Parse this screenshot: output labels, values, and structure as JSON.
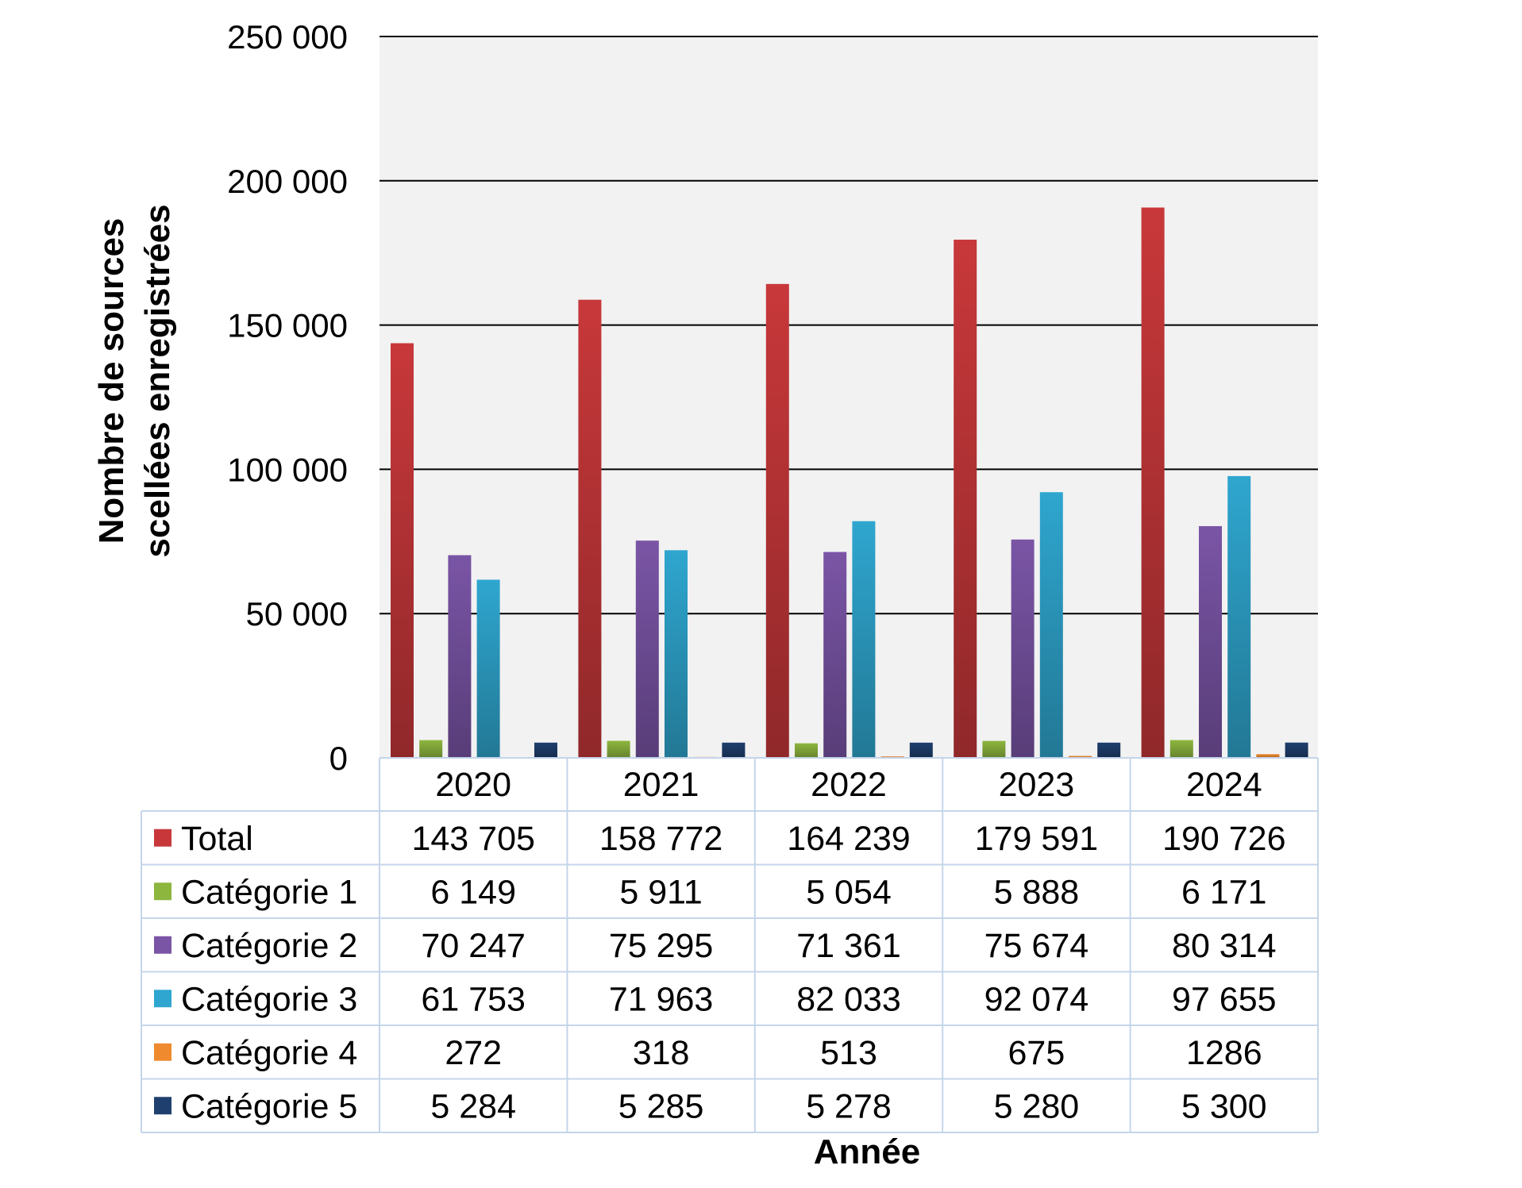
{
  "chart_data": {
    "type": "bar",
    "xlabel": "Année",
    "ylabel": "Nombre de sources scellées enregistrées",
    "ylabel_lines": [
      "Nombre de sources",
      "scellées enregistrées"
    ],
    "ylim": [
      0,
      250000
    ],
    "yticks": [
      0,
      50000,
      100000,
      150000,
      200000,
      250000
    ],
    "ytick_labels": [
      "0",
      "50 000",
      "100 000",
      "150 000",
      "200 000",
      "250 000"
    ],
    "grid": true,
    "legend": "data-table",
    "categories": [
      "2020",
      "2021",
      "2022",
      "2023",
      "2024"
    ],
    "series": [
      {
        "name": "Total",
        "color": "#c8383a",
        "values": [
          143705,
          158772,
          164239,
          179591,
          190726
        ],
        "labels": [
          "143 705",
          "158 772",
          "164 239",
          "179 591",
          "190 726"
        ]
      },
      {
        "name": "Catégorie 1",
        "color": "#8db63f",
        "values": [
          6149,
          5911,
          5054,
          5888,
          6171
        ],
        "labels": [
          "6 149",
          "5 911",
          "5 054",
          "5 888",
          "6 171"
        ]
      },
      {
        "name": "Catégorie 2",
        "color": "#7a55a6",
        "values": [
          70247,
          75295,
          71361,
          75674,
          80314
        ],
        "labels": [
          "70 247",
          "75 295",
          "71 361",
          "75 674",
          "80 314"
        ]
      },
      {
        "name": "Catégorie 3",
        "color": "#2fa6cf",
        "values": [
          61753,
          71963,
          82033,
          92074,
          97655
        ],
        "labels": [
          "61 753",
          "71 963",
          "82 033",
          "92 074",
          "97 655"
        ]
      },
      {
        "name": "Catégorie 4",
        "color": "#ef8a2e",
        "values": [
          272,
          318,
          513,
          675,
          1286
        ],
        "labels": [
          "272",
          "318",
          "513",
          "675",
          "1286"
        ]
      },
      {
        "name": "Catégorie 5",
        "color": "#1f3f6e",
        "values": [
          5284,
          5285,
          5278,
          5280,
          5300
        ],
        "labels": [
          "5 284",
          "5 285",
          "5 278",
          "5 280",
          "5 300"
        ]
      }
    ]
  }
}
